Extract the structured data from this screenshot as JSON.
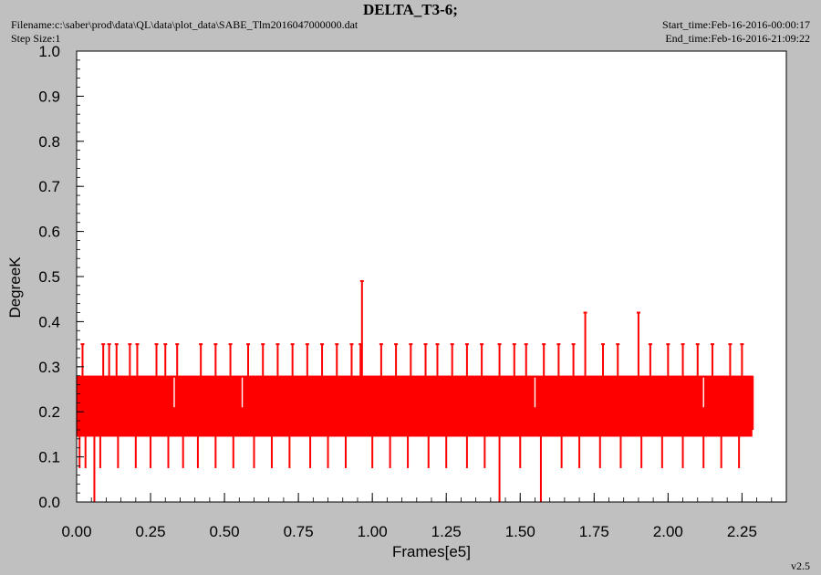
{
  "header": {
    "title": "DELTA_T3-6;",
    "filename": "Filename:c:\\saber\\prod\\data\\QL\\data\\plot_data\\SABE_Tlm2016047000000.dat",
    "step_size": "Step Size:1",
    "start_time": "Start_time:Feb-16-2016-00:00:17",
    "end_time": "End_time:Feb-16-2016-21:09:22",
    "version": "v2.5"
  },
  "colors": {
    "background": "#c0c0c0",
    "plot_area": "#ffffff",
    "series": "#ff0000",
    "axis": "#000000"
  },
  "chart_data": {
    "type": "line",
    "title": "DELTA_T3-6;",
    "xlabel": "Frames[e5]",
    "ylabel": "DegreeK",
    "xlim": [
      0.0,
      2.4
    ],
    "ylim": [
      0.0,
      1.0
    ],
    "x_ticks": [
      "0.00",
      "0.25",
      "0.50",
      "0.75",
      "1.00",
      "1.25",
      "1.50",
      "1.75",
      "2.00",
      "2.25"
    ],
    "y_ticks": [
      "0.0",
      "0.1",
      "0.2",
      "0.3",
      "0.4",
      "0.5",
      "0.6",
      "0.7",
      "0.8",
      "0.9",
      "1.0"
    ],
    "grid": false,
    "x_range_of_data": [
      0.0,
      2.285
    ],
    "band": {
      "x": [
        0.0,
        2.285
      ],
      "y": [
        0.145,
        0.28
      ]
    },
    "levels": [
      0.0,
      0.075,
      0.145,
      0.21,
      0.28,
      0.35,
      0.42,
      0.49
    ],
    "upper_spikes": [
      {
        "x": 0.02,
        "y": 0.35
      },
      {
        "x": 0.09,
        "y": 0.35
      },
      {
        "x": 0.11,
        "y": 0.35
      },
      {
        "x": 0.135,
        "y": 0.35
      },
      {
        "x": 0.18,
        "y": 0.35
      },
      {
        "x": 0.205,
        "y": 0.35
      },
      {
        "x": 0.27,
        "y": 0.35
      },
      {
        "x": 0.3,
        "y": 0.35
      },
      {
        "x": 0.34,
        "y": 0.35
      },
      {
        "x": 0.42,
        "y": 0.35
      },
      {
        "x": 0.47,
        "y": 0.35
      },
      {
        "x": 0.52,
        "y": 0.35
      },
      {
        "x": 0.58,
        "y": 0.35
      },
      {
        "x": 0.63,
        "y": 0.35
      },
      {
        "x": 0.68,
        "y": 0.35
      },
      {
        "x": 0.73,
        "y": 0.35
      },
      {
        "x": 0.78,
        "y": 0.35
      },
      {
        "x": 0.83,
        "y": 0.35
      },
      {
        "x": 0.88,
        "y": 0.35
      },
      {
        "x": 0.93,
        "y": 0.35
      },
      {
        "x": 0.96,
        "y": 0.35
      },
      {
        "x": 0.965,
        "y": 0.49
      },
      {
        "x": 1.03,
        "y": 0.35
      },
      {
        "x": 1.08,
        "y": 0.35
      },
      {
        "x": 1.13,
        "y": 0.35
      },
      {
        "x": 1.18,
        "y": 0.35
      },
      {
        "x": 1.22,
        "y": 0.35
      },
      {
        "x": 1.27,
        "y": 0.35
      },
      {
        "x": 1.32,
        "y": 0.35
      },
      {
        "x": 1.37,
        "y": 0.35
      },
      {
        "x": 1.43,
        "y": 0.35
      },
      {
        "x": 1.48,
        "y": 0.35
      },
      {
        "x": 1.52,
        "y": 0.35
      },
      {
        "x": 1.58,
        "y": 0.35
      },
      {
        "x": 1.63,
        "y": 0.35
      },
      {
        "x": 1.68,
        "y": 0.35
      },
      {
        "x": 1.72,
        "y": 0.42
      },
      {
        "x": 1.78,
        "y": 0.35
      },
      {
        "x": 1.83,
        "y": 0.35
      },
      {
        "x": 1.9,
        "y": 0.42
      },
      {
        "x": 1.94,
        "y": 0.35
      },
      {
        "x": 2.0,
        "y": 0.35
      },
      {
        "x": 2.05,
        "y": 0.35
      },
      {
        "x": 2.1,
        "y": 0.35
      },
      {
        "x": 2.15,
        "y": 0.35
      },
      {
        "x": 2.21,
        "y": 0.35
      },
      {
        "x": 2.25,
        "y": 0.35
      }
    ],
    "lower_spikes": [
      {
        "x": 0.01,
        "y": 0.075
      },
      {
        "x": 0.03,
        "y": 0.075
      },
      {
        "x": 0.06,
        "y": 0.0
      },
      {
        "x": 0.08,
        "y": 0.075
      },
      {
        "x": 0.14,
        "y": 0.075
      },
      {
        "x": 0.2,
        "y": 0.075
      },
      {
        "x": 0.25,
        "y": 0.075
      },
      {
        "x": 0.31,
        "y": 0.075
      },
      {
        "x": 0.36,
        "y": 0.075
      },
      {
        "x": 0.41,
        "y": 0.075
      },
      {
        "x": 0.47,
        "y": 0.075
      },
      {
        "x": 0.53,
        "y": 0.075
      },
      {
        "x": 0.6,
        "y": 0.075
      },
      {
        "x": 0.66,
        "y": 0.075
      },
      {
        "x": 0.72,
        "y": 0.075
      },
      {
        "x": 0.79,
        "y": 0.075
      },
      {
        "x": 0.85,
        "y": 0.075
      },
      {
        "x": 0.91,
        "y": 0.075
      },
      {
        "x": 1.0,
        "y": 0.075
      },
      {
        "x": 1.06,
        "y": 0.075
      },
      {
        "x": 1.12,
        "y": 0.075
      },
      {
        "x": 1.19,
        "y": 0.075
      },
      {
        "x": 1.25,
        "y": 0.075
      },
      {
        "x": 1.32,
        "y": 0.075
      },
      {
        "x": 1.38,
        "y": 0.075
      },
      {
        "x": 1.43,
        "y": 0.0
      },
      {
        "x": 1.5,
        "y": 0.075
      },
      {
        "x": 1.57,
        "y": 0.0
      },
      {
        "x": 1.64,
        "y": 0.075
      },
      {
        "x": 1.7,
        "y": 0.075
      },
      {
        "x": 1.77,
        "y": 0.075
      },
      {
        "x": 1.84,
        "y": 0.075
      },
      {
        "x": 1.91,
        "y": 0.075
      },
      {
        "x": 1.98,
        "y": 0.075
      },
      {
        "x": 2.05,
        "y": 0.075
      },
      {
        "x": 2.12,
        "y": 0.075
      },
      {
        "x": 2.18,
        "y": 0.075
      },
      {
        "x": 2.24,
        "y": 0.075
      }
    ],
    "band_gaps": [
      {
        "x": 0.33,
        "y": 0.21
      },
      {
        "x": 0.56,
        "y": 0.21
      },
      {
        "x": 1.55,
        "y": 0.21
      },
      {
        "x": 2.12,
        "y": 0.21
      }
    ]
  }
}
